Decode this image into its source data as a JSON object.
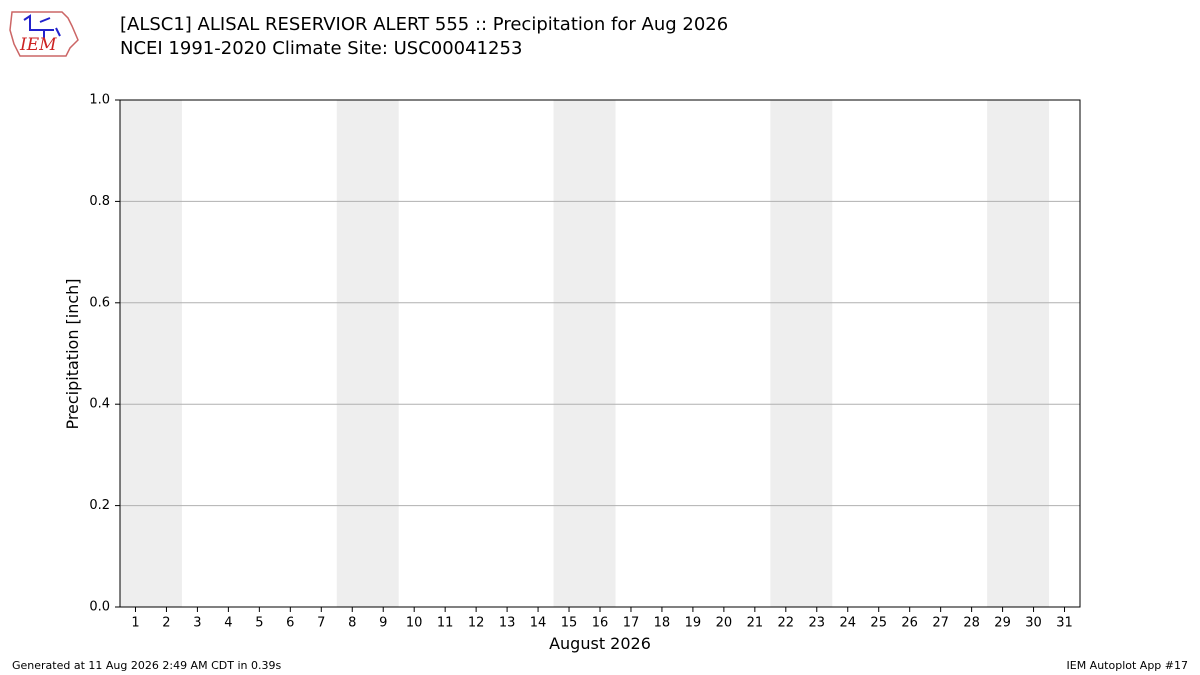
{
  "chart_data": {
    "type": "bar",
    "title": "[ALSC1] ALISAL RESERVIOR  ALERT 555 :: Precipitation for Aug 2026",
    "subtitle": "NCEI 1991-2020 Climate Site: USC00041253",
    "xlabel": "August 2026",
    "ylabel": "Precipitation [inch]",
    "xlim": [
      0.5,
      31.5
    ],
    "xticks": [
      1,
      2,
      3,
      4,
      5,
      6,
      7,
      8,
      9,
      10,
      11,
      12,
      13,
      14,
      15,
      16,
      17,
      18,
      19,
      20,
      21,
      22,
      23,
      24,
      25,
      26,
      27,
      28,
      29,
      30,
      31
    ],
    "ylim": [
      0,
      1
    ],
    "yticks": [
      {
        "value": 0,
        "label": "0.0"
      },
      0.2,
      0.4,
      0.6,
      0.8,
      {
        "value": 1,
        "label": "1.0"
      }
    ],
    "grid": true,
    "shaded_spans": [
      [
        0.5,
        2.5
      ],
      [
        7.5,
        9.5
      ],
      [
        14.5,
        16.5
      ],
      [
        21.5,
        23.5
      ],
      [
        28.5,
        30.5
      ]
    ],
    "shade_color": "#eeeeee",
    "logo": "IEM",
    "footer_left": "Generated at 11 Aug 2026 2:49 AM CDT in 0.39s",
    "footer_right": "IEM Autoplot App #17"
  }
}
